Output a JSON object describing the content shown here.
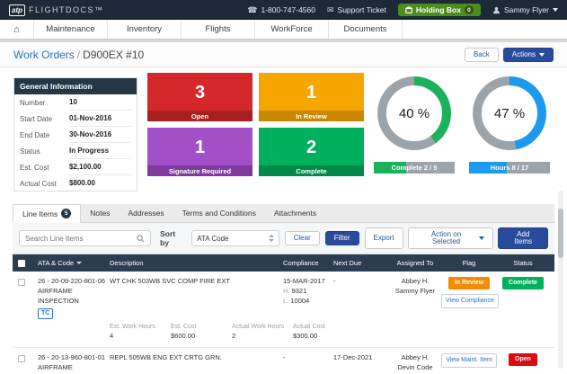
{
  "colors": {
    "topbar_bg": "#1d2937",
    "primary_blue": "#2a4b9b",
    "link_blue": "#2a6fc0",
    "holding_box_green": "#4d8c1e",
    "panel_header_navy": "#253746",
    "table_header_navy": "#2b3e51",
    "donut_gray": "#9ba4ab"
  },
  "topbar": {
    "logo_badge": "atp",
    "logo_text": "FLIGHTDOCS™",
    "phone": "1-800-747-4560",
    "support_ticket": "Support Ticket",
    "holding_box_label": "Holding Box",
    "holding_box_count": "0",
    "user_name": "Sammy Flyer"
  },
  "nav": {
    "items": [
      "Maintenance",
      "Inventory",
      "Flights",
      "WorkForce",
      "Documents"
    ]
  },
  "page_header": {
    "breadcrumb_root": "Work Orders",
    "separator": "/",
    "title": "D900EX #10",
    "back_label": "Back",
    "actions_label": "Actions"
  },
  "general_info": {
    "header": "General Information",
    "rows": [
      {
        "label": "Number",
        "value": "10"
      },
      {
        "label": "Start Date",
        "value": "01-Nov-2016"
      },
      {
        "label": "End Date",
        "value": "30-Nov-2016"
      },
      {
        "label": "Status",
        "value": "In Progress"
      },
      {
        "label": "Est. Cost",
        "value": "$2,100.00"
      },
      {
        "label": "Actual Cost",
        "value": "$800.00"
      }
    ]
  },
  "tiles": [
    {
      "count": "3",
      "label": "Open",
      "color": "#d5282a",
      "strip": "#a81f21"
    },
    {
      "count": "1",
      "label": "In Review",
      "color": "#f7a600",
      "strip": "#c98700"
    },
    {
      "count": "1",
      "label": "Signature Required",
      "color": "#a350c8",
      "strip": "#7f3a9e"
    },
    {
      "count": "2",
      "label": "Complete",
      "color": "#00b05d",
      "strip": "#00894a"
    }
  ],
  "donuts": [
    {
      "percent": 40,
      "percent_label": "40 %",
      "bar_label": "Complete 2 / 5",
      "color": "#1cb25b"
    },
    {
      "percent": 47,
      "percent_label": "47 %",
      "bar_label": "Hours 8 / 17",
      "color": "#1c9af0"
    }
  ],
  "tabs": [
    {
      "label": "Line Items",
      "badge": "5"
    },
    {
      "label": "Notes"
    },
    {
      "label": "Addresses"
    },
    {
      "label": "Terms and Conditions"
    },
    {
      "label": "Attachments"
    }
  ],
  "toolbar": {
    "search_placeholder": "Search Line Items",
    "sort_by_label": "Sort by",
    "sort_value": "ATA Code",
    "clear_label": "Clear",
    "filter_label": "Filter",
    "export_label": "Export",
    "action_on_selected_label": "Action on Selected",
    "add_items_label": "Add Items"
  },
  "table": {
    "columns": {
      "ata": "ATA & Code",
      "description": "Description",
      "compliance": "Compliance",
      "next_due": "Next Due",
      "assigned_to": "Assigned To",
      "flag": "Flag",
      "status": "Status"
    },
    "rows": [
      {
        "ata_code": "26 - 20-09-220-801-06",
        "ata_type": "AIRFRAME",
        "ata_sub": "INSPECTION",
        "ata_badge": "TC",
        "description": "WT CHK 503WB SVC COMP FIRE EXT",
        "compliance_date": "15-MAR-2017",
        "compliance_h_label": "H:",
        "compliance_h": "9321",
        "compliance_l_label": "L:",
        "compliance_l": "10004",
        "next_due": "-",
        "assigned_1": "Abbey H.",
        "assigned_2": "Sammy Flyer",
        "flag_status": "In Review",
        "flag_status_color": "#f28b00",
        "flag_button": "View Compliance",
        "status": "Complete",
        "status_color": "#00b05d",
        "details": {
          "est_work_hours_label": "Est. Work Hours",
          "est_work_hours": "4",
          "est_cost_label": "Est. Cost",
          "est_cost": "$600.00",
          "actual_work_hours_label": "Actual Work Hours",
          "actual_work_hours": "2",
          "actual_cost_label": "Actual Cost",
          "actual_cost": "$300.00"
        }
      },
      {
        "ata_code": "26 - 20-13-960-801-01",
        "ata_type": "AIRFRAME",
        "description": "REPL 505WB ENG EXT CRTG GRN.",
        "compliance_date": "-",
        "next_due": "17-Dec-2021",
        "assigned_1": "Abbey H.",
        "assigned_2": "Devin Code",
        "flag_button": "View Maint. Item",
        "status": "Open",
        "status_color": "#dd0a12"
      }
    ]
  }
}
